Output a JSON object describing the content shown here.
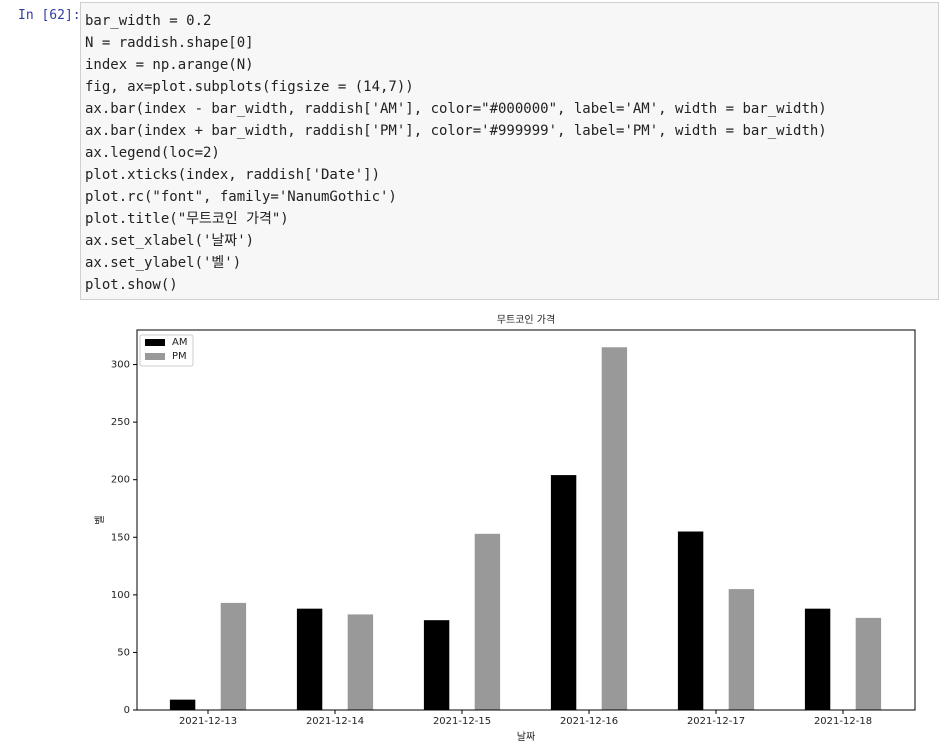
{
  "prompt": "In [62]:",
  "code": [
    "bar_width = 0.2",
    "N = raddish.shape[0]",
    "index = np.arange(N)",
    "fig, ax=plot.subplots(figsize = (14,7))",
    "ax.bar(index - bar_width, raddish['AM'], color=\"#000000\", label='AM', width = bar_width)",
    "ax.bar(index + bar_width, raddish['PM'], color='#999999', label='PM', width = bar_width)",
    "ax.legend(loc=2)",
    "plot.xticks(index, raddish['Date'])",
    "plot.rc(\"font\", family='NanumGothic')",
    "plot.title(\"무트코인 가격\")",
    "ax.set_xlabel('날짜')",
    "ax.set_ylabel('벨')",
    "plot.show()"
  ],
  "chart_data": {
    "type": "bar",
    "title": "무트코인 가격",
    "xlabel": "날짜",
    "ylabel": "벨",
    "categories": [
      "2021-12-13",
      "2021-12-14",
      "2021-12-15",
      "2021-12-16",
      "2021-12-17",
      "2021-12-18"
    ],
    "series": [
      {
        "name": "AM",
        "color": "#000000",
        "values": [
          9,
          88,
          78,
          204,
          155,
          88
        ]
      },
      {
        "name": "PM",
        "color": "#999999",
        "values": [
          93,
          83,
          153,
          315,
          105,
          80
        ]
      }
    ],
    "ylim": [
      0,
      330
    ],
    "yticks": [
      0,
      50,
      100,
      150,
      200,
      250,
      300
    ],
    "legend": "upper left"
  }
}
